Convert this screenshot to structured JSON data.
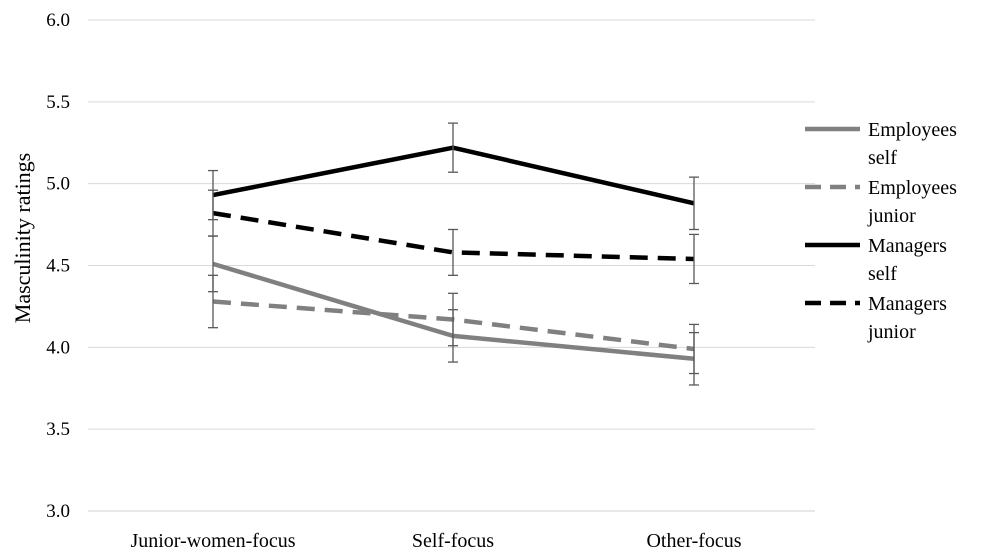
{
  "chart_data": {
    "type": "line",
    "title": "",
    "xlabel": "",
    "ylabel": "Masculinity ratings",
    "ylim": [
      3.0,
      6.0
    ],
    "yticks": [
      "3.0",
      "3.5",
      "4.0",
      "4.5",
      "5.0",
      "5.5",
      "6.0"
    ],
    "categories": [
      "Junior-women-focus",
      "Self-focus",
      "Other-focus"
    ],
    "grid": true,
    "legend_position": "right",
    "series": [
      {
        "name_lines": [
          "Employees",
          "self"
        ],
        "values": [
          4.51,
          4.07,
          3.93
        ],
        "error": [
          0.17,
          0.16,
          0.16
        ],
        "color": "#808080",
        "dash": "solid"
      },
      {
        "name_lines": [
          "Employees",
          "junior"
        ],
        "values": [
          4.28,
          4.17,
          3.99
        ],
        "error": [
          0.16,
          0.16,
          0.15
        ],
        "color": "#808080",
        "dash": "dashed"
      },
      {
        "name_lines": [
          "Managers",
          "self"
        ],
        "values": [
          4.93,
          5.22,
          4.88
        ],
        "error": [
          0.15,
          0.15,
          0.16
        ],
        "color": "#000000",
        "dash": "solid"
      },
      {
        "name_lines": [
          "Managers",
          "junior"
        ],
        "values": [
          4.82,
          4.58,
          4.54
        ],
        "error": [
          0.14,
          0.14,
          0.15
        ],
        "color": "#000000",
        "dash": "dashed"
      }
    ]
  }
}
